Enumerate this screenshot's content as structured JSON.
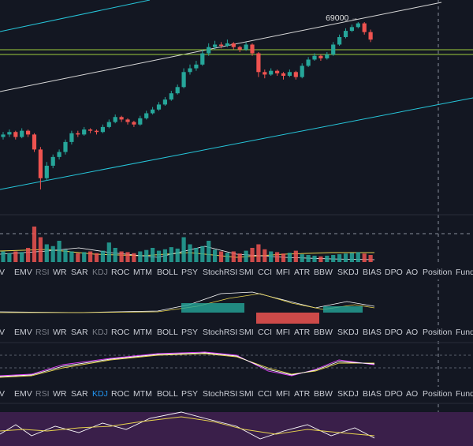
{
  "chart_data": {
    "type": "candlestick",
    "peak_label": 69000,
    "candles": [
      [
        59800,
        60200,
        59600,
        60000
      ],
      [
        60000,
        60400,
        59800,
        60200
      ],
      [
        60200,
        60300,
        59600,
        59800
      ],
      [
        59800,
        60500,
        59700,
        60300
      ],
      [
        60300,
        60400,
        59800,
        60000
      ],
      [
        60000,
        60100,
        58600,
        58800
      ],
      [
        58800,
        59000,
        55600,
        56500
      ],
      [
        56500,
        57800,
        56300,
        57500
      ],
      [
        57500,
        58400,
        57300,
        58200
      ],
      [
        58200,
        58800,
        58000,
        58600
      ],
      [
        58600,
        59600,
        58400,
        59400
      ],
      [
        59400,
        60300,
        59200,
        60100
      ],
      [
        60100,
        60300,
        59800,
        60000
      ],
      [
        60000,
        60600,
        59900,
        60400
      ],
      [
        60400,
        60500,
        60100,
        60300
      ],
      [
        60300,
        60400,
        60000,
        60200
      ],
      [
        60200,
        60800,
        60100,
        60600
      ],
      [
        60600,
        61200,
        60500,
        61000
      ],
      [
        61000,
        61600,
        60900,
        61400
      ],
      [
        61400,
        61500,
        61000,
        61200
      ],
      [
        61200,
        61300,
        60800,
        61000
      ],
      [
        61000,
        61100,
        60600,
        60800
      ],
      [
        60800,
        61500,
        60700,
        61300
      ],
      [
        61300,
        61900,
        61200,
        61700
      ],
      [
        61700,
        62200,
        61600,
        62000
      ],
      [
        62000,
        62600,
        61900,
        62400
      ],
      [
        62400,
        63000,
        62300,
        62800
      ],
      [
        62800,
        63500,
        62700,
        63300
      ],
      [
        63300,
        64000,
        63200,
        63800
      ],
      [
        63800,
        65300,
        63700,
        65000
      ],
      [
        65000,
        65600,
        64800,
        65300
      ],
      [
        65300,
        65900,
        65100,
        65600
      ],
      [
        65600,
        66800,
        65500,
        66500
      ],
      [
        66500,
        67300,
        66300,
        67000
      ],
      [
        67000,
        67500,
        66800,
        67200
      ],
      [
        67200,
        67400,
        66900,
        67100
      ],
      [
        67100,
        67600,
        67000,
        67300
      ],
      [
        67300,
        67400,
        66800,
        67000
      ],
      [
        67000,
        67100,
        66600,
        66800
      ],
      [
        66800,
        67400,
        66700,
        67200
      ],
      [
        67200,
        67300,
        66300,
        66500
      ],
      [
        66500,
        66600,
        64600,
        65000
      ],
      [
        65000,
        65200,
        64500,
        64800
      ],
      [
        64800,
        65300,
        64700,
        65100
      ],
      [
        65100,
        65200,
        64700,
        64900
      ],
      [
        64900,
        65000,
        64400,
        64700
      ],
      [
        64700,
        65200,
        64600,
        65000
      ],
      [
        65000,
        65100,
        64400,
        64600
      ],
      [
        64600,
        65700,
        64500,
        65500
      ],
      [
        65500,
        66200,
        65400,
        66000
      ],
      [
        66000,
        66500,
        65900,
        66300
      ],
      [
        66300,
        66400,
        65900,
        66100
      ],
      [
        66100,
        66600,
        66000,
        66400
      ],
      [
        66400,
        67400,
        66300,
        67200
      ],
      [
        67200,
        68000,
        67100,
        67800
      ],
      [
        67800,
        68500,
        67700,
        68300
      ],
      [
        68300,
        68800,
        68200,
        68600
      ],
      [
        68600,
        69000,
        68500,
        68900
      ],
      [
        68900,
        69000,
        68000,
        68200
      ],
      [
        68200,
        68400,
        67400,
        67600
      ]
    ],
    "volumes": [
      3,
      2.5,
      3,
      2.8,
      4,
      10,
      7,
      5,
      4.5,
      6,
      3.5,
      3,
      2.5,
      2.8,
      3,
      2.5,
      3.2,
      5.5,
      4,
      3,
      2.8,
      2.5,
      3,
      3.4,
      4,
      3.2,
      3.6,
      4.2,
      3.8,
      7,
      5,
      4,
      4.5,
      6,
      3.5,
      3,
      2.6,
      3,
      2.4,
      3.2,
      4,
      5,
      3.6,
      3,
      2.8,
      2.4,
      2.6,
      3.2,
      2.2,
      2,
      1.8,
      1.6,
      1.8,
      2,
      2.2,
      2.4,
      2.6,
      2.8,
      2.4,
      2
    ]
  },
  "indicator_tabs": [
    "BV",
    "EMV",
    "RSI",
    "WR",
    "SAR",
    "KDJ",
    "ROC",
    "MTM",
    "BOLL",
    "PSY",
    "StochRSI",
    "SMI",
    "CCI",
    "MFI",
    "ATR",
    "BBW",
    "SKDJ",
    "BIAS",
    "DPO",
    "AO",
    "Position",
    "Fund"
  ]
}
